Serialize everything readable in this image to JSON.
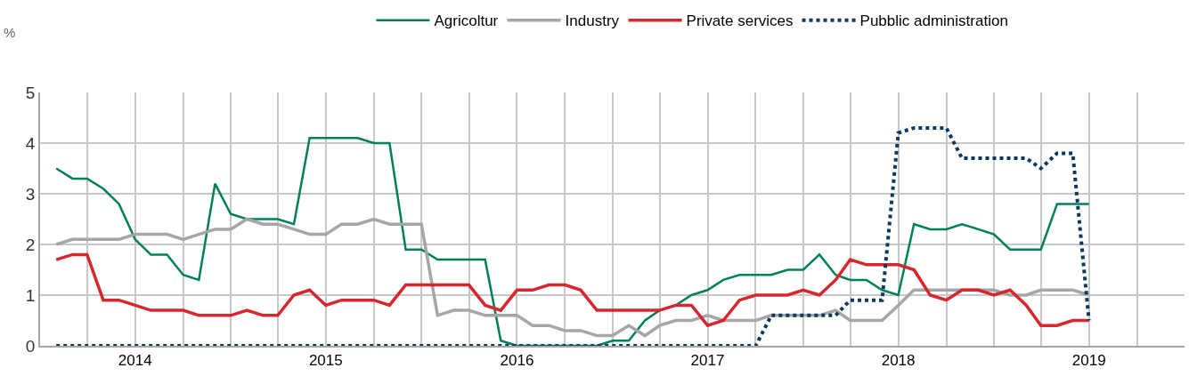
{
  "chart_data": {
    "type": "line",
    "ylabel": "%",
    "x": [
      "2014-01-16",
      "2014-02-16",
      "2014-03-16",
      "2014-04-16",
      "2014-05-16",
      "2014-06-16",
      "2014-07-16",
      "2014-08-16",
      "2014-09-16",
      "2014-10-16",
      "2014-11-16",
      "2014-12-16",
      "2015-01-16",
      "2015-02-16",
      "2015-03-16",
      "2015-04-16",
      "2015-05-16",
      "2015-06-16",
      "2015-07-16",
      "2015-08-16",
      "2015-09-16",
      "2015-10-16",
      "2015-11-16",
      "2015-12-16",
      "2016-01-16",
      "2016-02-16",
      "2016-03-16",
      "2016-04-16",
      "2016-05-16",
      "2016-06-16",
      "2016-07-16",
      "2016-08-16",
      "2016-09-16",
      "2016-10-16",
      "2016-11-16",
      "2016-12-16",
      "2017-01-16",
      "2017-02-16",
      "2017-03-16",
      "2017-04-16",
      "2017-05-16",
      "2017-06-16",
      "2017-07-16",
      "2017-08-16",
      "2017-09-16",
      "2017-10-16",
      "2017-11-16",
      "2017-12-16",
      "2018-01-16",
      "2018-02-16",
      "2018-03-16",
      "2018-04-16",
      "2018-05-16",
      "2018-06-16",
      "2018-07-16",
      "2018-08-16",
      "2018-09-16",
      "2018-10-16",
      "2018-11-16",
      "2018-12-16",
      "2019-01-16",
      "2019-02-16",
      "2019-03-16",
      "2019-04-16",
      "2019-05-16",
      "2019-06-16"
    ],
    "series": [
      {
        "name": "Agricoltur",
        "color": "#00805a",
        "values": [
          3.5,
          3.3,
          3.3,
          3.1,
          2.8,
          2.1,
          1.8,
          1.8,
          1.4,
          1.3,
          3.2,
          2.6,
          2.5,
          2.5,
          2.5,
          2.4,
          4.1,
          4.1,
          4.1,
          4.1,
          4.0,
          4.0,
          1.9,
          1.9,
          1.7,
          1.7,
          1.7,
          1.7,
          0.1,
          0.0,
          0.0,
          0.0,
          0.0,
          0.0,
          0.0,
          0.1,
          0.1,
          0.5,
          0.7,
          0.8,
          1.0,
          1.1,
          1.3,
          1.4,
          1.4,
          1.4,
          1.5,
          1.5,
          1.8,
          1.4,
          1.3,
          1.3,
          1.1,
          1.0,
          2.4,
          2.3,
          2.3,
          2.4,
          2.3,
          2.2,
          1.9,
          1.9,
          1.9,
          2.8,
          2.8,
          2.8
        ]
      },
      {
        "name": "Industry",
        "color": "#a6a6a6",
        "values": [
          2.0,
          2.1,
          2.1,
          2.1,
          2.1,
          2.2,
          2.2,
          2.2,
          2.1,
          2.2,
          2.3,
          2.3,
          2.5,
          2.4,
          2.4,
          2.3,
          2.2,
          2.2,
          2.4,
          2.4,
          2.5,
          2.4,
          2.4,
          2.4,
          0.6,
          0.7,
          0.7,
          0.6,
          0.6,
          0.6,
          0.4,
          0.4,
          0.3,
          0.3,
          0.2,
          0.2,
          0.4,
          0.2,
          0.4,
          0.5,
          0.5,
          0.6,
          0.5,
          0.5,
          0.5,
          0.6,
          0.6,
          0.6,
          0.6,
          0.7,
          0.5,
          0.5,
          0.5,
          0.8,
          1.1,
          1.1,
          1.1,
          1.1,
          1.1,
          1.1,
          1.0,
          1.0,
          1.1,
          1.1,
          1.1,
          1.0
        ]
      },
      {
        "name": "Private services",
        "color": "#d7262e",
        "values": [
          1.7,
          1.8,
          1.8,
          0.9,
          0.9,
          0.8,
          0.7,
          0.7,
          0.7,
          0.6,
          0.6,
          0.6,
          0.7,
          0.6,
          0.6,
          1.0,
          1.1,
          0.8,
          0.9,
          0.9,
          0.9,
          0.8,
          1.2,
          1.2,
          1.2,
          1.2,
          1.2,
          0.8,
          0.7,
          1.1,
          1.1,
          1.2,
          1.2,
          1.1,
          0.7,
          0.7,
          0.7,
          0.7,
          0.7,
          0.8,
          0.8,
          0.4,
          0.5,
          0.9,
          1.0,
          1.0,
          1.0,
          1.1,
          1.0,
          1.3,
          1.7,
          1.6,
          1.6,
          1.6,
          1.5,
          1.0,
          0.9,
          1.1,
          1.1,
          1.0,
          1.1,
          0.8,
          0.4,
          0.4,
          0.5,
          0.5
        ]
      },
      {
        "name": "Pubblic administration",
        "color": "#0b3a5c",
        "line_style": "dotted",
        "values": [
          0,
          0,
          0,
          0,
          0,
          0,
          0,
          0,
          0,
          0,
          0,
          0,
          0,
          0,
          0,
          0,
          0,
          0,
          0,
          0,
          0,
          0,
          0,
          0,
          0,
          0,
          0,
          0,
          0,
          0,
          0,
          0,
          0,
          0,
          0,
          0,
          0,
          0,
          0,
          0,
          0,
          0,
          0,
          0,
          0,
          0.6,
          0.6,
          0.6,
          0.6,
          0.6,
          0.9,
          0.9,
          0.9,
          4.2,
          4.3,
          4.3,
          4.3,
          3.7,
          3.7,
          3.7,
          3.7,
          3.7,
          3.5,
          3.8,
          3.8,
          0.5
        ]
      }
    ],
    "xlim": [
      "2013-12-16",
      "2019-12-16"
    ],
    "xticks": [
      {
        "value": "2014-06-16",
        "label": "2014"
      },
      {
        "value": "2015-06-16",
        "label": "2015"
      },
      {
        "value": "2016-06-16",
        "label": "2016"
      },
      {
        "value": "2017-06-16",
        "label": "2017"
      },
      {
        "value": "2018-06-16",
        "label": "2018"
      },
      {
        "value": "2019-06-16",
        "label": "2019"
      }
    ],
    "ylim": [
      0,
      5
    ],
    "yticks": [
      0,
      1,
      2,
      3,
      4,
      5
    ],
    "grid": true,
    "legend": "top",
    "line_style": "solid",
    "marker": "none"
  }
}
